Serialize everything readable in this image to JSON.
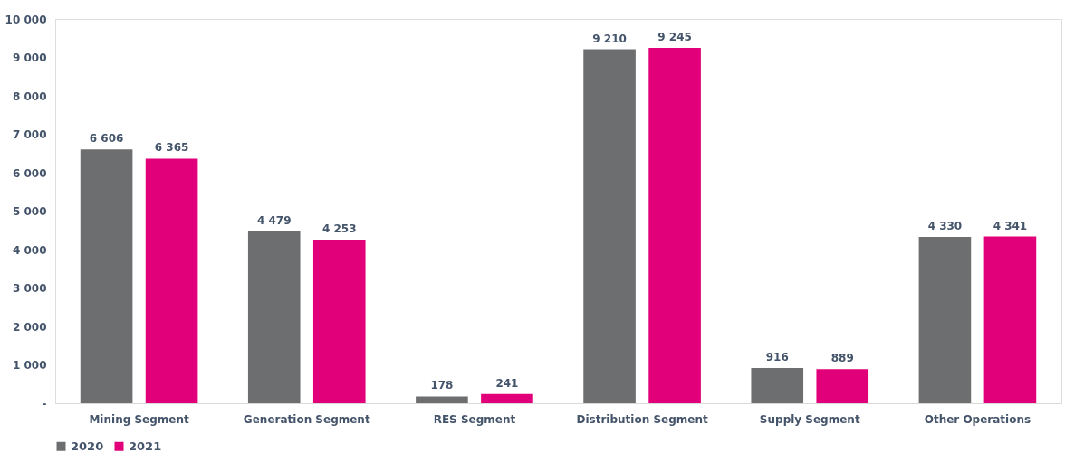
{
  "chart_data": {
    "type": "bar",
    "categories": [
      "Mining Segment",
      "Generation Segment",
      "RES Segment",
      "Distribution Segment",
      "Supply Segment",
      "Other Operations"
    ],
    "series": [
      {
        "name": "2020",
        "color": "#6d6e70",
        "values": [
          6606,
          4479,
          178,
          9210,
          916,
          4330
        ],
        "value_labels": [
          "6 606",
          "4 479",
          "178",
          "9 210",
          "916",
          "4 330"
        ]
      },
      {
        "name": "2021",
        "color": "#e2007a",
        "values": [
          6365,
          4253,
          241,
          9245,
          889,
          4341
        ],
        "value_labels": [
          "6 365",
          "4 253",
          "241",
          "9 245",
          "889",
          "4 341"
        ]
      }
    ],
    "ylim": [
      0,
      10000
    ],
    "yticks": [
      {
        "value": 0,
        "label": "-"
      },
      {
        "value": 1000,
        "label": "1 000"
      },
      {
        "value": 2000,
        "label": "2 000"
      },
      {
        "value": 3000,
        "label": "3 000"
      },
      {
        "value": 4000,
        "label": "4 000"
      },
      {
        "value": 5000,
        "label": "5 000"
      },
      {
        "value": 6000,
        "label": "6 000"
      },
      {
        "value": 7000,
        "label": "7 000"
      },
      {
        "value": 8000,
        "label": "8 000"
      },
      {
        "value": 9000,
        "label": "9 000"
      },
      {
        "value": 10000,
        "label": "10 000"
      }
    ],
    "grid": false,
    "legend": "bottom"
  }
}
